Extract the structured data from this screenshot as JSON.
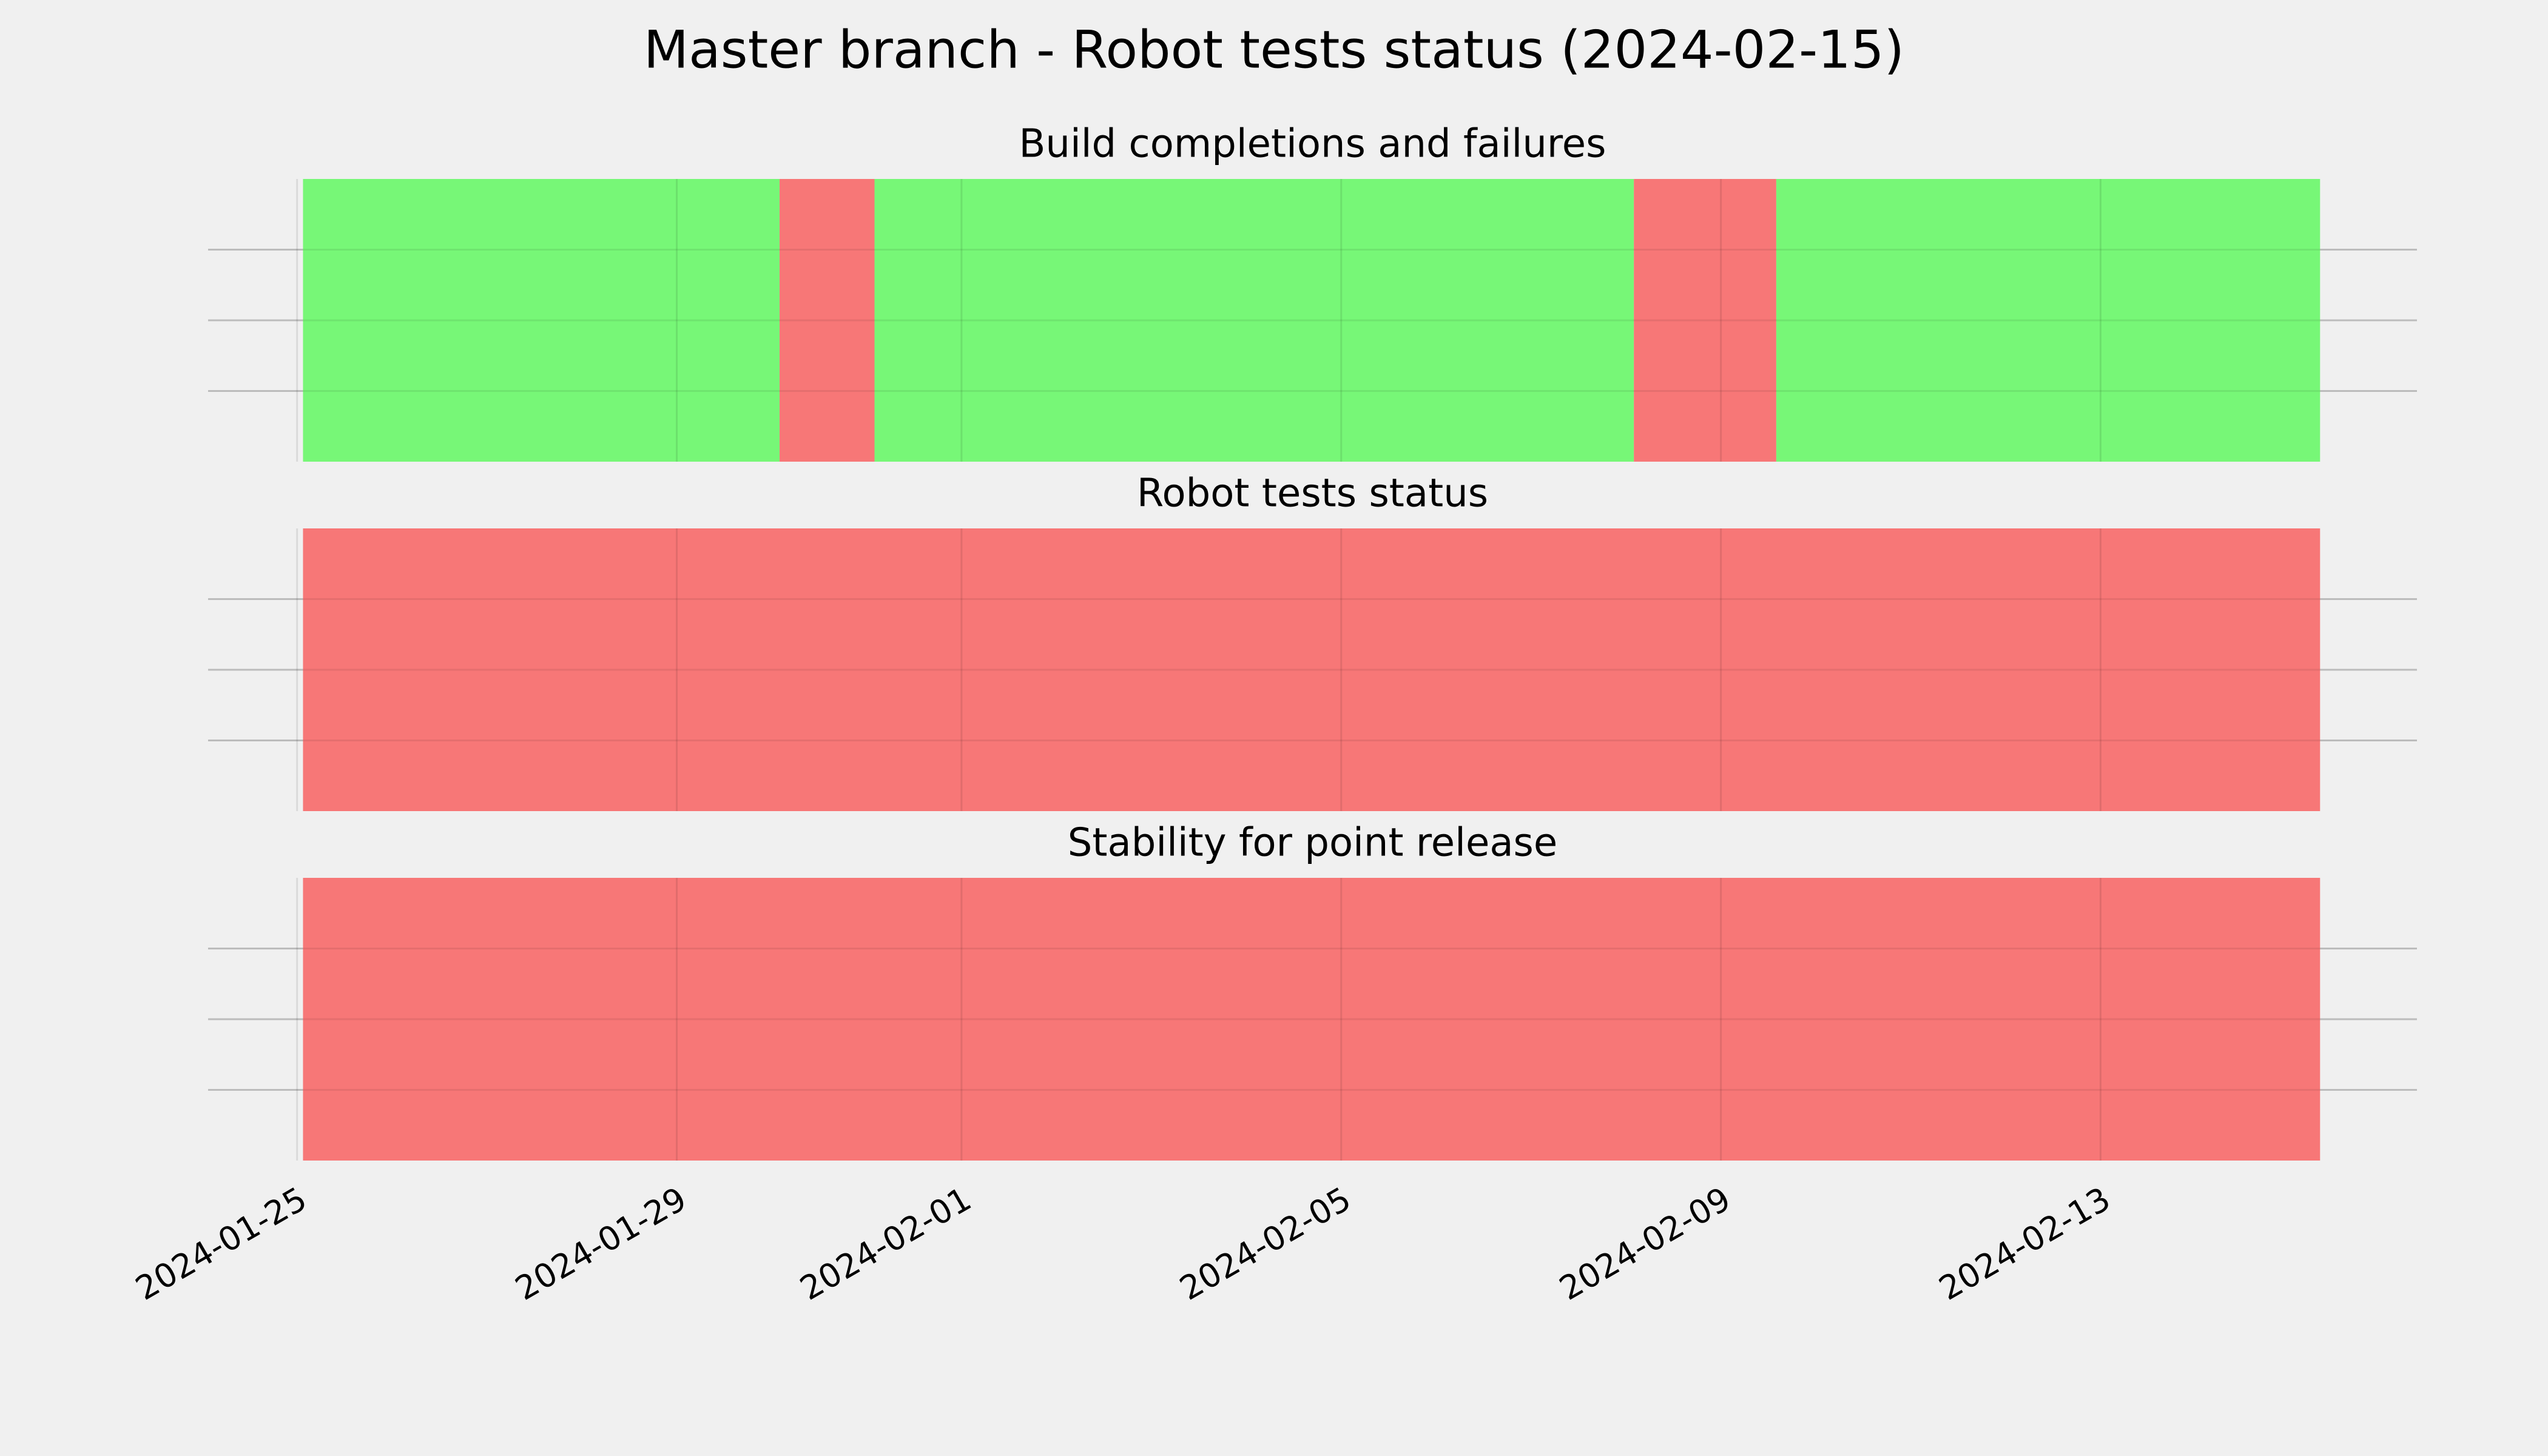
{
  "title": "Master branch - Robot tests status (2024-02-15)",
  "chart_data": [
    {
      "type": "timeline",
      "title": "Build completions and failures",
      "starts": [
        "2024-01-25T01:30",
        "2024-01-30T02:00",
        "2024-01-31T02:00",
        "2024-02-08T02:00",
        "2024-02-09T14:00"
      ],
      "ends": [
        "2024-01-30T02:00",
        "2024-01-31T02:00",
        "2024-02-08T02:00",
        "2024-02-09T14:00",
        "2024-02-15T07:30"
      ],
      "colors": [
        "#77f777",
        "#f77777",
        "#77f777",
        "#f77777",
        "#77f777"
      ],
      "xlim": [
        "2024-01-24T01:30",
        "2024-02-16T08:00"
      ],
      "ylim": [
        0,
        1
      ],
      "yticks": [
        0.25,
        0.5,
        0.75
      ],
      "grid": true
    },
    {
      "type": "timeline",
      "title": "Robot tests status",
      "starts": [
        "2024-01-25T01:30"
      ],
      "ends": [
        "2024-02-15T07:30"
      ],
      "colors": [
        "#f77777"
      ],
      "xlim": [
        "2024-01-24T01:30",
        "2024-02-16T08:00"
      ],
      "ylim": [
        0,
        1
      ],
      "yticks": [
        0.25,
        0.5,
        0.75
      ],
      "grid": true
    },
    {
      "type": "timeline",
      "title": "Stability for point release",
      "starts": [
        "2024-01-25T01:30"
      ],
      "ends": [
        "2024-02-15T07:30"
      ],
      "colors": [
        "#f77777"
      ],
      "xlim": [
        "2024-01-24T01:30",
        "2024-02-16T08:00"
      ],
      "xticks": [
        "2024-01-25",
        "2024-01-29",
        "2024-02-01",
        "2024-02-05",
        "2024-02-09",
        "2024-02-13"
      ],
      "ylim": [
        0,
        1
      ],
      "yticks": [
        0.25,
        0.5,
        0.75
      ],
      "grid": true
    }
  ]
}
